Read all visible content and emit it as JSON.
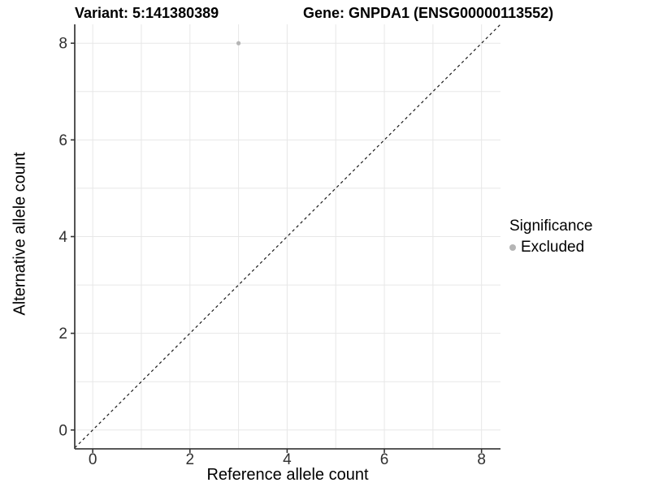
{
  "header": {
    "variant_title": "Variant: 5:141380389",
    "gene_title": "Gene: GNPDA1 (ENSG00000113552)"
  },
  "chart_data": {
    "type": "scatter",
    "xlabel": "Reference allele count",
    "ylabel": "Alternative allele count",
    "xlim": [
      -0.37,
      8.39
    ],
    "ylim": [
      -0.39,
      8.39
    ],
    "xticks": [
      0,
      2,
      4,
      6,
      8
    ],
    "yticks": [
      0,
      2,
      4,
      6,
      8
    ],
    "grid_x": [
      0,
      1,
      2,
      3,
      4,
      5,
      6,
      7,
      8
    ],
    "grid_y": [
      0,
      1,
      2,
      3,
      4,
      5,
      6,
      7,
      8
    ],
    "points": [
      {
        "x": 3,
        "y": 8,
        "significance": "Excluded"
      }
    ],
    "identity_line": {
      "slope": 1,
      "intercept": 0,
      "style": "dashed"
    },
    "legend": {
      "title": "Significance",
      "position": "right",
      "items": [
        {
          "label": "Excluded",
          "color": "#b5b5b5"
        }
      ]
    },
    "colors": {
      "point": "#b5b5b5",
      "grid": "#e7e7e7",
      "axis_line": "#404040",
      "tick": "#333333",
      "tick_label": "#303030",
      "identity_line": "#1a1a1a",
      "background": "#ffffff"
    }
  }
}
